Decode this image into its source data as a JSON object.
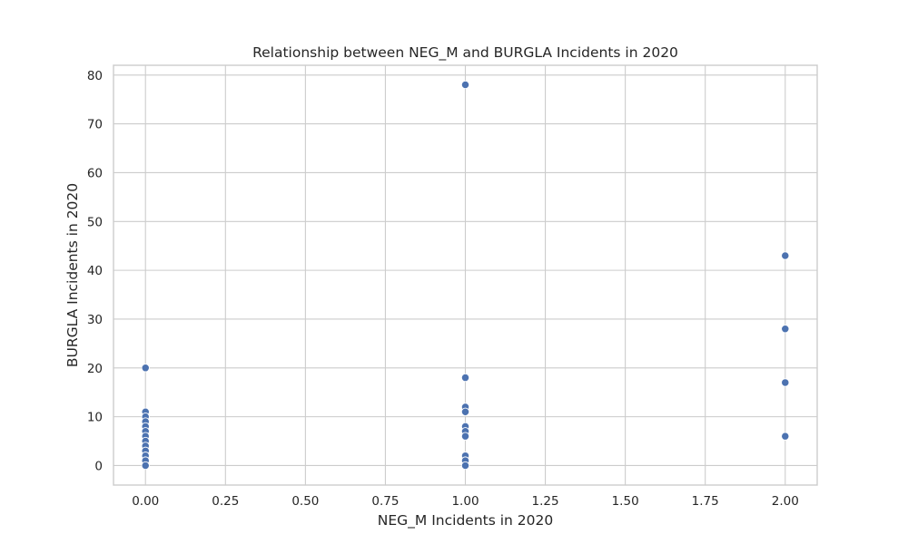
{
  "chart_data": {
    "type": "scatter",
    "title": "Relationship between NEG_M and BURGLA Incidents in 2020",
    "xlabel": "NEG_M Incidents in 2020",
    "ylabel": "BURGLA Incidents in 2020",
    "xlim": [
      -0.1,
      2.1
    ],
    "ylim": [
      -4,
      82
    ],
    "xticks": [
      0.0,
      0.25,
      0.5,
      0.75,
      1.0,
      1.25,
      1.5,
      1.75,
      2.0
    ],
    "xtick_labels": [
      "0.00",
      "0.25",
      "0.50",
      "0.75",
      "1.00",
      "1.25",
      "1.50",
      "1.75",
      "2.00"
    ],
    "yticks": [
      0,
      10,
      20,
      30,
      40,
      50,
      60,
      70,
      80
    ],
    "ytick_labels": [
      "0",
      "10",
      "20",
      "30",
      "40",
      "50",
      "60",
      "70",
      "80"
    ],
    "grid": true,
    "colors": {
      "point": "#4c72b0",
      "grid": "#cccccc",
      "background": "#ffffff"
    },
    "points": [
      {
        "x": 0,
        "y": 20
      },
      {
        "x": 0,
        "y": 11
      },
      {
        "x": 0,
        "y": 10
      },
      {
        "x": 0,
        "y": 9
      },
      {
        "x": 0,
        "y": 8
      },
      {
        "x": 0,
        "y": 7
      },
      {
        "x": 0,
        "y": 6
      },
      {
        "x": 0,
        "y": 5
      },
      {
        "x": 0,
        "y": 4
      },
      {
        "x": 0,
        "y": 3
      },
      {
        "x": 0,
        "y": 2
      },
      {
        "x": 0,
        "y": 1
      },
      {
        "x": 0,
        "y": 0
      },
      {
        "x": 1,
        "y": 78
      },
      {
        "x": 1,
        "y": 18
      },
      {
        "x": 1,
        "y": 12
      },
      {
        "x": 1,
        "y": 11
      },
      {
        "x": 1,
        "y": 8
      },
      {
        "x": 1,
        "y": 7
      },
      {
        "x": 1,
        "y": 6
      },
      {
        "x": 1,
        "y": 2
      },
      {
        "x": 1,
        "y": 1
      },
      {
        "x": 1,
        "y": 0
      },
      {
        "x": 2,
        "y": 43
      },
      {
        "x": 2,
        "y": 28
      },
      {
        "x": 2,
        "y": 17
      },
      {
        "x": 2,
        "y": 6
      }
    ]
  }
}
